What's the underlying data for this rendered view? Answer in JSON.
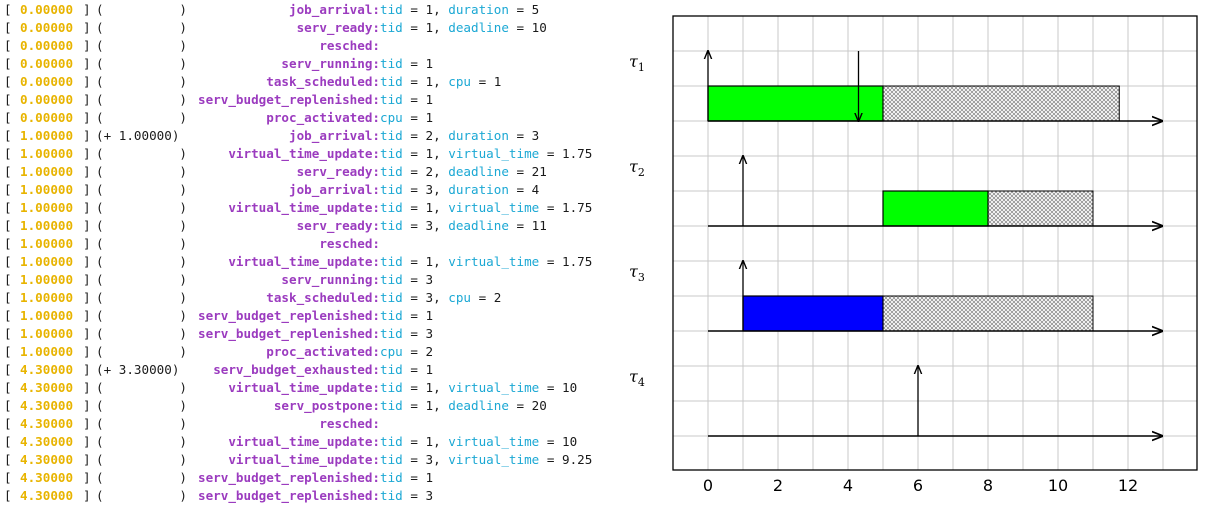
{
  "colors": {
    "timestamp": "#e8b400",
    "event": "#9b3bbf",
    "field_key": "#1ba8d4",
    "text": "#1a1a1a",
    "exec_green": "#00ff00",
    "exec_blue": "#0000ff",
    "grid": "#c8c8c8"
  },
  "log": {
    "rows": [
      {
        "ts": "0.00000",
        "delta": "",
        "event": "job_arrival",
        "fields": [
          {
            "k": "tid",
            "v": " = 1, "
          },
          {
            "k": "duration",
            "v": " = 5"
          }
        ]
      },
      {
        "ts": "0.00000",
        "delta": "",
        "event": "serv_ready",
        "fields": [
          {
            "k": "tid",
            "v": " = 1, "
          },
          {
            "k": "deadline",
            "v": " = 10"
          }
        ]
      },
      {
        "ts": "0.00000",
        "delta": "",
        "event": "resched",
        "fields": []
      },
      {
        "ts": "0.00000",
        "delta": "",
        "event": "serv_running",
        "fields": [
          {
            "k": "tid",
            "v": " = 1"
          }
        ]
      },
      {
        "ts": "0.00000",
        "delta": "",
        "event": "task_scheduled",
        "fields": [
          {
            "k": "tid",
            "v": " = 1, "
          },
          {
            "k": "cpu",
            "v": " = 1"
          }
        ]
      },
      {
        "ts": "0.00000",
        "delta": "",
        "event": "serv_budget_replenished",
        "fields": [
          {
            "k": "tid",
            "v": " = 1"
          }
        ]
      },
      {
        "ts": "0.00000",
        "delta": "",
        "event": "proc_activated",
        "fields": [
          {
            "k": "cpu",
            "v": " = 1"
          }
        ]
      },
      {
        "ts": "1.00000",
        "delta": "+ 1.00000",
        "event": "job_arrival",
        "fields": [
          {
            "k": "tid",
            "v": " = 2, "
          },
          {
            "k": "duration",
            "v": " = 3"
          }
        ]
      },
      {
        "ts": "1.00000",
        "delta": "",
        "event": "virtual_time_update",
        "fields": [
          {
            "k": "tid",
            "v": " = 1, "
          },
          {
            "k": "virtual_time",
            "v": " = 1.75"
          }
        ]
      },
      {
        "ts": "1.00000",
        "delta": "",
        "event": "serv_ready",
        "fields": [
          {
            "k": "tid",
            "v": " = 2, "
          },
          {
            "k": "deadline",
            "v": " = 21"
          }
        ]
      },
      {
        "ts": "1.00000",
        "delta": "",
        "event": "job_arrival",
        "fields": [
          {
            "k": "tid",
            "v": " = 3, "
          },
          {
            "k": "duration",
            "v": " = 4"
          }
        ]
      },
      {
        "ts": "1.00000",
        "delta": "",
        "event": "virtual_time_update",
        "fields": [
          {
            "k": "tid",
            "v": " = 1, "
          },
          {
            "k": "virtual_time",
            "v": " = 1.75"
          }
        ]
      },
      {
        "ts": "1.00000",
        "delta": "",
        "event": "serv_ready",
        "fields": [
          {
            "k": "tid",
            "v": " = 3, "
          },
          {
            "k": "deadline",
            "v": " = 11"
          }
        ]
      },
      {
        "ts": "1.00000",
        "delta": "",
        "event": "resched",
        "fields": []
      },
      {
        "ts": "1.00000",
        "delta": "",
        "event": "virtual_time_update",
        "fields": [
          {
            "k": "tid",
            "v": " = 1, "
          },
          {
            "k": "virtual_time",
            "v": " = 1.75"
          }
        ]
      },
      {
        "ts": "1.00000",
        "delta": "",
        "event": "serv_running",
        "fields": [
          {
            "k": "tid",
            "v": " = 3"
          }
        ]
      },
      {
        "ts": "1.00000",
        "delta": "",
        "event": "task_scheduled",
        "fields": [
          {
            "k": "tid",
            "v": " = 3, "
          },
          {
            "k": "cpu",
            "v": " = 2"
          }
        ]
      },
      {
        "ts": "1.00000",
        "delta": "",
        "event": "serv_budget_replenished",
        "fields": [
          {
            "k": "tid",
            "v": " = 1"
          }
        ]
      },
      {
        "ts": "1.00000",
        "delta": "",
        "event": "serv_budget_replenished",
        "fields": [
          {
            "k": "tid",
            "v": " = 3"
          }
        ]
      },
      {
        "ts": "1.00000",
        "delta": "",
        "event": "proc_activated",
        "fields": [
          {
            "k": "cpu",
            "v": " = 2"
          }
        ]
      },
      {
        "ts": "4.30000",
        "delta": "+ 3.30000",
        "event": "serv_budget_exhausted",
        "fields": [
          {
            "k": "tid",
            "v": " = 1"
          }
        ]
      },
      {
        "ts": "4.30000",
        "delta": "",
        "event": "virtual_time_update",
        "fields": [
          {
            "k": "tid",
            "v": " = 1, "
          },
          {
            "k": "virtual_time",
            "v": " = 10"
          }
        ]
      },
      {
        "ts": "4.30000",
        "delta": "",
        "event": "serv_postpone",
        "fields": [
          {
            "k": "tid",
            "v": " = 1, "
          },
          {
            "k": "deadline",
            "v": " = 20"
          }
        ]
      },
      {
        "ts": "4.30000",
        "delta": "",
        "event": "resched",
        "fields": []
      },
      {
        "ts": "4.30000",
        "delta": "",
        "event": "virtual_time_update",
        "fields": [
          {
            "k": "tid",
            "v": " = 1, "
          },
          {
            "k": "virtual_time",
            "v": " = 10"
          }
        ]
      },
      {
        "ts": "4.30000",
        "delta": "",
        "event": "virtual_time_update",
        "fields": [
          {
            "k": "tid",
            "v": " = 3, "
          },
          {
            "k": "virtual_time",
            "v": " = 9.25"
          }
        ]
      },
      {
        "ts": "4.30000",
        "delta": "",
        "event": "serv_budget_replenished",
        "fields": [
          {
            "k": "tid",
            "v": " = 1"
          }
        ]
      },
      {
        "ts": "4.30000",
        "delta": "",
        "event": "serv_budget_replenished",
        "fields": [
          {
            "k": "tid",
            "v": " = 3"
          }
        ]
      }
    ]
  },
  "chart_data": {
    "type": "gantt",
    "xlim": [
      -1,
      14
    ],
    "x_ticks": [
      0,
      2,
      4,
      6,
      8,
      10,
      12
    ],
    "grid": true,
    "tasks": [
      {
        "label": "τ1",
        "sub": "1",
        "arrivals": [
          0
        ],
        "deadlines": [
          4.3
        ],
        "exec": [
          {
            "start": 0,
            "end": 5,
            "color": "#00ff00"
          }
        ],
        "reserved": [
          {
            "start": 5,
            "end": 11.75
          }
        ]
      },
      {
        "label": "τ2",
        "sub": "2",
        "arrivals": [
          1
        ],
        "deadlines": [],
        "exec": [
          {
            "start": 5,
            "end": 8,
            "color": "#00ff00"
          }
        ],
        "reserved": [
          {
            "start": 8,
            "end": 11
          }
        ]
      },
      {
        "label": "τ3",
        "sub": "3",
        "arrivals": [
          1
        ],
        "deadlines": [],
        "exec": [
          {
            "start": 1,
            "end": 5,
            "color": "#0000ff"
          }
        ],
        "reserved": [
          {
            "start": 5,
            "end": 11
          }
        ]
      },
      {
        "label": "τ4",
        "sub": "4",
        "arrivals": [
          6
        ],
        "deadlines": [],
        "exec": [],
        "reserved": []
      }
    ]
  }
}
